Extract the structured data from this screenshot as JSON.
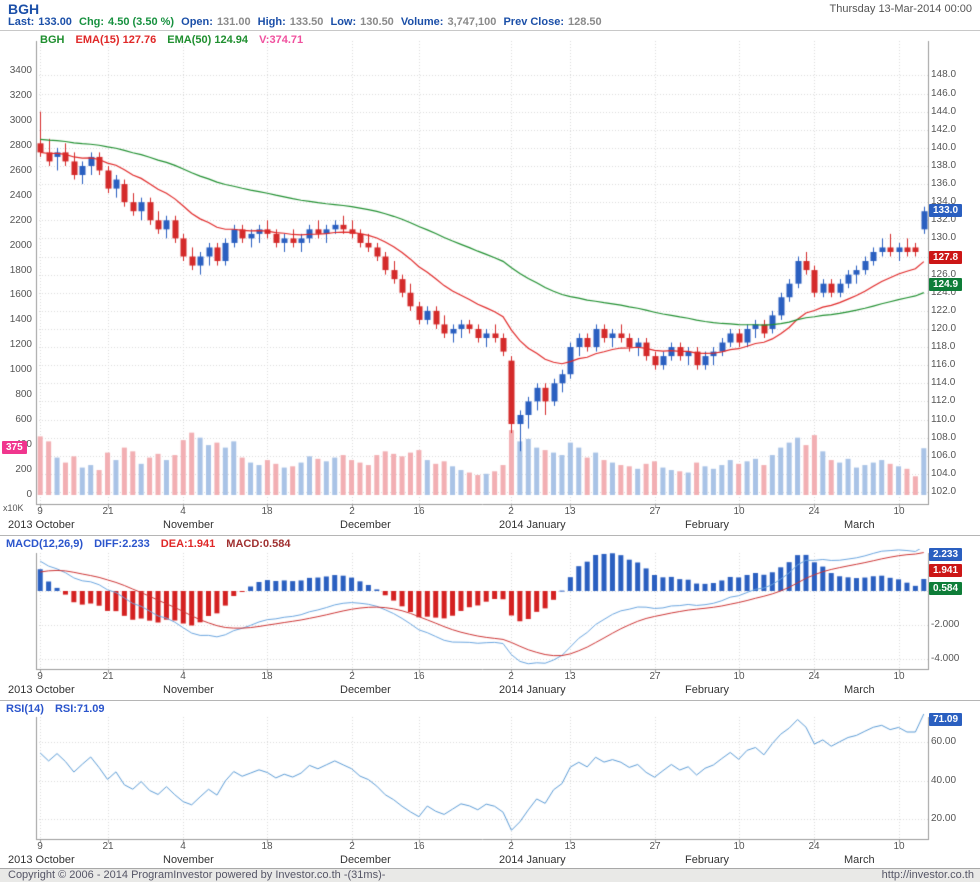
{
  "header": {
    "symbol": "BGH",
    "datetime": "Thursday 13-Mar-2014 00:00",
    "stats": [
      {
        "label": "Last:",
        "value": "133.00"
      },
      {
        "label": "Chg:",
        "value": "4.50 (3.50 %)"
      },
      {
        "label": "Open:",
        "value": "131.00"
      },
      {
        "label": "High:",
        "value": "133.50"
      },
      {
        "label": "Low:",
        "value": "130.50"
      },
      {
        "label": "Volume:",
        "value": "3,747,100"
      },
      {
        "label": "Prev Close:",
        "value": "128.50"
      }
    ]
  },
  "colors": {
    "accent_blue": "#1b4fa8",
    "up_green": "#17913f",
    "badge_blue": "#2a5fc0",
    "badge_red": "#cc1616",
    "badge_green": "#0e7d38",
    "badge_pink": "#f0368e"
  },
  "footer": {
    "copyright": "Copyright © 2006 - 2014 ProgramInvestor powered by Investor.co.th -(31ms)-",
    "url": "http://investor.co.th"
  },
  "chart_data": [
    {
      "type": "candlestick",
      "title": "BGH daily with EMA(15), EMA(50) and volume",
      "legend": [
        "BGH",
        "EMA(15) 127.76",
        "EMA(50) 124.94",
        "V:374.71"
      ],
      "badges": {
        "last_price": "133.0",
        "ema15": "127.8",
        "ema50": "124.9",
        "last_volume": "375"
      },
      "price_axis": {
        "min": 102,
        "max": 148,
        "step": 2,
        "side": "right"
      },
      "volume_axis": {
        "min": 0,
        "max": 3400,
        "step": 200,
        "unit": "x10K",
        "side": "left"
      },
      "colors": {
        "up_candle": "#2a5fc0",
        "down_candle": "#d42a2a",
        "up_volume": "#a9c3e6",
        "down_volume": "#f2afb3",
        "ema15": "#e02828",
        "ema50": "#1f8f2f"
      },
      "x_ticks": [
        {
          "i": 0,
          "label": "9"
        },
        {
          "i": 8,
          "label": "21"
        },
        {
          "i": 17,
          "label": "4"
        },
        {
          "i": 27,
          "label": "18"
        },
        {
          "i": 37,
          "label": "2"
        },
        {
          "i": 45,
          "label": "16"
        },
        {
          "i": 56,
          "label": "2"
        },
        {
          "i": 63,
          "label": "13"
        },
        {
          "i": 73,
          "label": "27"
        },
        {
          "i": 83,
          "label": "10"
        },
        {
          "i": 92,
          "label": "24"
        },
        {
          "i": 102,
          "label": "10"
        }
      ],
      "month_labels": [
        {
          "i": null,
          "label": "2013 October"
        },
        {
          "i": 16,
          "label": "November"
        },
        {
          "i": 37,
          "label": "December"
        },
        {
          "i": 56,
          "label": "2014 January"
        },
        {
          "i": 78,
          "label": "February"
        },
        {
          "i": 97,
          "label": "March"
        }
      ],
      "dates": [
        "2013-10-09",
        "2013-10-10",
        "2013-10-11",
        "2013-10-14",
        "2013-10-15",
        "2013-10-16",
        "2013-10-17",
        "2013-10-18",
        "2013-10-21",
        "2013-10-22",
        "2013-10-24",
        "2013-10-25",
        "2013-10-28",
        "2013-10-29",
        "2013-10-30",
        "2013-10-31",
        "2013-11-01",
        "2013-11-04",
        "2013-11-05",
        "2013-11-06",
        "2013-11-07",
        "2013-11-08",
        "2013-11-11",
        "2013-11-12",
        "2013-11-13",
        "2013-11-14",
        "2013-11-15",
        "2013-11-18",
        "2013-11-19",
        "2013-11-20",
        "2013-11-21",
        "2013-11-22",
        "2013-11-25",
        "2013-11-26",
        "2013-11-27",
        "2013-11-28",
        "2013-11-29",
        "2013-12-02",
        "2013-12-03",
        "2013-12-04",
        "2013-12-06",
        "2013-12-09",
        "2013-12-11",
        "2013-12-12",
        "2013-12-13",
        "2013-12-16",
        "2013-12-17",
        "2013-12-18",
        "2013-12-19",
        "2013-12-20",
        "2013-12-23",
        "2013-12-24",
        "2013-12-25",
        "2013-12-26",
        "2013-12-27",
        "2013-12-30",
        "2014-01-02",
        "2014-01-03",
        "2014-01-06",
        "2014-01-07",
        "2014-01-08",
        "2014-01-09",
        "2014-01-10",
        "2014-01-13",
        "2014-01-14",
        "2014-01-15",
        "2014-01-16",
        "2014-01-17",
        "2014-01-20",
        "2014-01-21",
        "2014-01-22",
        "2014-01-23",
        "2014-01-24",
        "2014-01-27",
        "2014-01-28",
        "2014-01-29",
        "2014-01-30",
        "2014-01-31",
        "2014-02-03",
        "2014-02-04",
        "2014-02-05",
        "2014-02-06",
        "2014-02-07",
        "2014-02-10",
        "2014-02-11",
        "2014-02-12",
        "2014-02-13",
        "2014-02-17",
        "2014-02-18",
        "2014-02-19",
        "2014-02-20",
        "2014-02-21",
        "2014-02-24",
        "2014-02-25",
        "2014-02-26",
        "2014-02-27",
        "2014-02-28",
        "2014-03-03",
        "2014-03-04",
        "2014-03-05",
        "2014-03-06",
        "2014-03-07",
        "2014-03-10",
        "2014-03-11",
        "2014-03-12",
        "2014-03-13"
      ],
      "open": [
        140.5,
        139.5,
        139.0,
        139.5,
        138.5,
        137.0,
        138.0,
        139.0,
        137.5,
        135.5,
        136.0,
        134.0,
        133.0,
        134.0,
        132.0,
        131.0,
        132.0,
        130.0,
        128.0,
        127.0,
        128.0,
        129.0,
        127.5,
        129.5,
        131.0,
        130.0,
        130.5,
        131.0,
        130.5,
        129.5,
        130.0,
        129.5,
        130.0,
        131.0,
        130.5,
        131.0,
        131.5,
        131.0,
        130.5,
        129.5,
        129.0,
        128.0,
        126.5,
        125.5,
        124.0,
        122.5,
        121.0,
        122.0,
        120.5,
        119.5,
        120.0,
        120.5,
        120.0,
        119.0,
        119.5,
        119.0,
        116.5,
        109.5,
        110.5,
        112.0,
        113.5,
        112.0,
        114.0,
        115.0,
        118.0,
        119.0,
        118.0,
        120.0,
        119.0,
        119.5,
        119.0,
        118.0,
        118.5,
        117.0,
        116.0,
        117.0,
        118.0,
        117.0,
        117.5,
        116.0,
        117.0,
        117.5,
        118.5,
        119.5,
        118.5,
        120.0,
        120.5,
        120.0,
        121.5,
        123.5,
        125.0,
        127.5,
        126.5,
        124.0,
        125.0,
        124.0,
        125.0,
        126.0,
        126.5,
        127.5,
        128.5,
        129.0,
        128.5,
        129.0,
        129.0,
        131.0
      ],
      "high": [
        144.0,
        141.0,
        140.0,
        140.5,
        139.5,
        138.5,
        139.5,
        139.5,
        138.0,
        137.0,
        136.5,
        135.0,
        134.5,
        134.5,
        133.0,
        132.5,
        132.5,
        130.5,
        129.0,
        128.5,
        129.5,
        129.5,
        130.0,
        131.5,
        131.5,
        131.0,
        131.5,
        132.0,
        131.0,
        130.5,
        131.0,
        130.5,
        131.5,
        132.0,
        131.5,
        132.0,
        132.5,
        132.0,
        131.0,
        130.5,
        129.5,
        128.5,
        127.5,
        126.0,
        125.0,
        123.0,
        122.5,
        122.5,
        121.5,
        120.5,
        121.0,
        121.0,
        120.5,
        120.0,
        120.5,
        119.5,
        117.0,
        111.0,
        112.5,
        114.0,
        114.0,
        114.5,
        115.5,
        118.5,
        119.5,
        119.5,
        120.5,
        120.5,
        120.0,
        120.5,
        119.5,
        119.0,
        119.0,
        117.5,
        117.5,
        118.5,
        118.5,
        118.0,
        118.0,
        117.5,
        118.0,
        119.0,
        120.0,
        120.0,
        120.5,
        121.0,
        121.0,
        122.0,
        124.0,
        125.5,
        128.0,
        128.5,
        127.0,
        125.5,
        125.5,
        125.5,
        126.5,
        127.0,
        128.0,
        129.0,
        130.0,
        130.5,
        129.5,
        130.0,
        129.5,
        133.5
      ],
      "low": [
        139.0,
        138.0,
        137.5,
        138.0,
        136.5,
        136.0,
        137.0,
        137.0,
        135.0,
        134.5,
        133.5,
        132.5,
        132.0,
        131.5,
        130.5,
        130.0,
        129.5,
        127.5,
        126.5,
        126.0,
        127.0,
        127.0,
        127.0,
        129.0,
        129.5,
        129.0,
        129.5,
        130.0,
        129.0,
        128.5,
        129.0,
        128.5,
        129.5,
        130.0,
        129.5,
        130.5,
        130.5,
        130.0,
        129.0,
        128.5,
        127.5,
        126.0,
        125.0,
        123.5,
        122.0,
        120.5,
        120.5,
        120.0,
        119.0,
        118.5,
        119.0,
        119.5,
        118.5,
        118.0,
        118.5,
        117.0,
        108.5,
        106.5,
        109.0,
        111.0,
        110.5,
        111.5,
        113.0,
        114.5,
        117.0,
        117.5,
        117.5,
        118.5,
        118.0,
        118.5,
        117.5,
        117.0,
        116.5,
        115.5,
        115.5,
        116.5,
        116.5,
        116.0,
        115.5,
        115.5,
        116.0,
        117.0,
        118.0,
        118.0,
        118.0,
        119.0,
        119.0,
        119.5,
        121.0,
        123.0,
        124.5,
        126.0,
        123.5,
        123.5,
        123.5,
        123.5,
        124.5,
        125.0,
        126.0,
        127.0,
        128.0,
        128.0,
        127.5,
        128.0,
        128.0,
        130.5
      ],
      "close": [
        139.5,
        138.5,
        139.5,
        138.5,
        137.0,
        138.0,
        139.0,
        137.5,
        135.5,
        136.5,
        134.0,
        133.0,
        134.0,
        132.0,
        131.0,
        132.0,
        130.0,
        128.0,
        127.0,
        128.0,
        129.0,
        127.5,
        129.5,
        131.0,
        130.0,
        130.5,
        131.0,
        130.5,
        129.5,
        130.0,
        129.5,
        130.0,
        131.0,
        130.5,
        131.0,
        131.5,
        131.0,
        130.5,
        129.5,
        129.0,
        128.0,
        126.5,
        125.5,
        124.0,
        122.5,
        121.0,
        122.0,
        120.5,
        119.5,
        120.0,
        120.5,
        120.0,
        119.0,
        119.5,
        119.0,
        117.5,
        109.5,
        110.5,
        112.0,
        113.5,
        112.0,
        114.0,
        115.0,
        118.0,
        119.0,
        118.0,
        120.0,
        119.0,
        119.5,
        119.0,
        118.0,
        118.5,
        117.0,
        116.0,
        117.0,
        118.0,
        117.0,
        117.5,
        116.0,
        117.0,
        117.5,
        118.5,
        119.5,
        118.5,
        120.0,
        120.5,
        119.5,
        121.5,
        123.5,
        125.0,
        127.5,
        126.5,
        124.0,
        125.0,
        124.0,
        125.0,
        126.0,
        126.5,
        127.5,
        128.5,
        129.0,
        128.5,
        129.0,
        128.5,
        128.5,
        133.0
      ],
      "volume_x10k": [
        470,
        430,
        300,
        260,
        310,
        220,
        240,
        200,
        340,
        280,
        380,
        350,
        250,
        300,
        330,
        280,
        320,
        440,
        500,
        460,
        400,
        420,
        380,
        430,
        300,
        260,
        240,
        280,
        250,
        220,
        230,
        260,
        310,
        290,
        270,
        300,
        320,
        280,
        260,
        240,
        320,
        350,
        330,
        310,
        340,
        360,
        280,
        250,
        270,
        230,
        200,
        180,
        160,
        170,
        190,
        240,
        520,
        430,
        450,
        380,
        360,
        340,
        320,
        420,
        380,
        300,
        340,
        280,
        260,
        240,
        230,
        210,
        250,
        270,
        220,
        200,
        190,
        180,
        260,
        230,
        210,
        240,
        280,
        250,
        270,
        290,
        240,
        320,
        380,
        420,
        460,
        400,
        480,
        350,
        280,
        260,
        290,
        220,
        240,
        260,
        280,
        250,
        230,
        210,
        150,
        375
      ]
    },
    {
      "type": "bar",
      "title": "MACD(12,26,9)",
      "legend": [
        "MACD(12,26,9)",
        "DIFF:2.233",
        "DEA:1.941",
        "MACD:0.584"
      ],
      "badges": {
        "diff": "2.233",
        "dea": "1.941",
        "macd": "0.584"
      },
      "params": {
        "fast": 12,
        "slow": 26,
        "signal": 9
      },
      "derived_from": "close series of chart 0 (histogram = 2 x (DIFF - DEA))",
      "y_ticks": [
        {
          "v": -2,
          "label": "-2.000"
        },
        {
          "v": -4,
          "label": "-4.000"
        }
      ],
      "colors": {
        "positive": "#2a5fc0",
        "negative": "#d42020",
        "diff_line": "#6aa5df",
        "dea_line": "#cc3333"
      }
    },
    {
      "type": "line",
      "title": "RSI(14)",
      "legend": [
        "RSI(14)",
        "RSI:71.09"
      ],
      "badges": {
        "rsi": "71.09"
      },
      "period": 14,
      "derived_from": "close series of chart 0",
      "y_ticks": [
        {
          "v": 60,
          "label": "60.00"
        },
        {
          "v": 40,
          "label": "40.00"
        },
        {
          "v": 20,
          "label": "20.00"
        }
      ],
      "color": "#5b9bd5"
    }
  ]
}
